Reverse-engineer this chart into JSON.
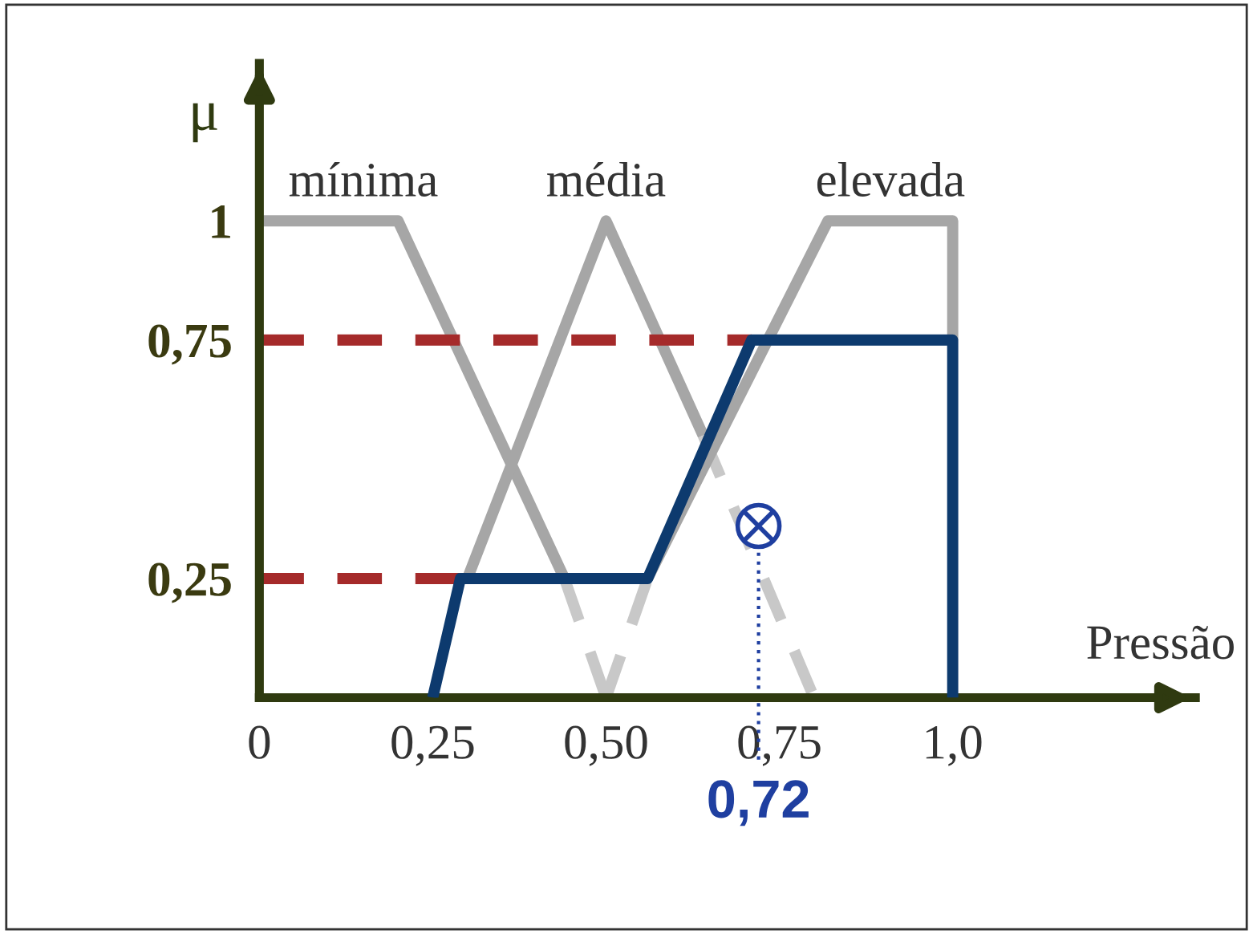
{
  "chart_data": {
    "type": "line",
    "xlabel": "Pressão",
    "ylabel": "μ",
    "xlim": [
      0,
      1.35
    ],
    "ylim": [
      0,
      1.33
    ],
    "xticks": [
      0,
      {
        "value": 0.25,
        "label": "0,25"
      },
      {
        "value": 0.5,
        "label": "0,50"
      },
      {
        "value": 0.75,
        "label": "0,75"
      },
      {
        "value": 1.0,
        "label": "1,0"
      }
    ],
    "yticks": [
      1,
      {
        "value": 0.75,
        "label": "0,75"
      },
      {
        "value": 0.25,
        "label": "0,25"
      }
    ],
    "grid": false,
    "marker": "none",
    "series": [
      {
        "name": "mínima",
        "color": "#a6a6a6",
        "x": [
          0,
          0.2,
          0.44
        ],
        "values": [
          1,
          1,
          0.25
        ]
      },
      {
        "color": "#c8c8c8",
        "line_style": "dashed",
        "x": [
          0.44,
          0.5
        ],
        "values": [
          0.25,
          0
        ]
      },
      {
        "name": "média",
        "color": "#a6a6a6",
        "x": [
          0.3,
          0.5,
          0.64
        ],
        "values": [
          0.25,
          1,
          0.55
        ]
      },
      {
        "color": "#c8c8c8",
        "line_style": "dashed",
        "x": [
          0.64,
          0.8
        ],
        "values": [
          0.55,
          0
        ]
      },
      {
        "color": "#c8c8c8",
        "line_style": "dashed",
        "x": [
          0.5,
          0.56
        ],
        "values": [
          0,
          0.25
        ]
      },
      {
        "name": "elevada",
        "color": "#a6a6a6",
        "x": [
          0.56,
          0.82,
          1.0,
          1.0
        ],
        "values": [
          0.25,
          1,
          1,
          0.75
        ]
      },
      {
        "color": "#a52a2a",
        "line_style": "dashed",
        "x": [
          0,
          0.29
        ],
        "values": [
          0.25,
          0.25
        ]
      },
      {
        "color": "#a52a2a",
        "line_style": "dashed",
        "x": [
          0,
          0.71
        ],
        "values": [
          0.75,
          0.75
        ]
      },
      {
        "color": "#0d3a6e",
        "x": [
          0.25,
          0.29,
          0.56,
          0.71,
          1.0,
          1.0
        ],
        "values": [
          0,
          0.25,
          0.25,
          0.75,
          0.75,
          0
        ]
      },
      {
        "type": "scatter",
        "color": "#1f3fa0",
        "marker": "circled-cross",
        "x": [
          0.72
        ],
        "values": [
          0.36
        ]
      }
    ],
    "ref_lines": [
      {
        "axis": "x",
        "value": 0.72,
        "label": "0,72",
        "color": "#1f3fa0",
        "line_style": "dotted"
      }
    ]
  }
}
